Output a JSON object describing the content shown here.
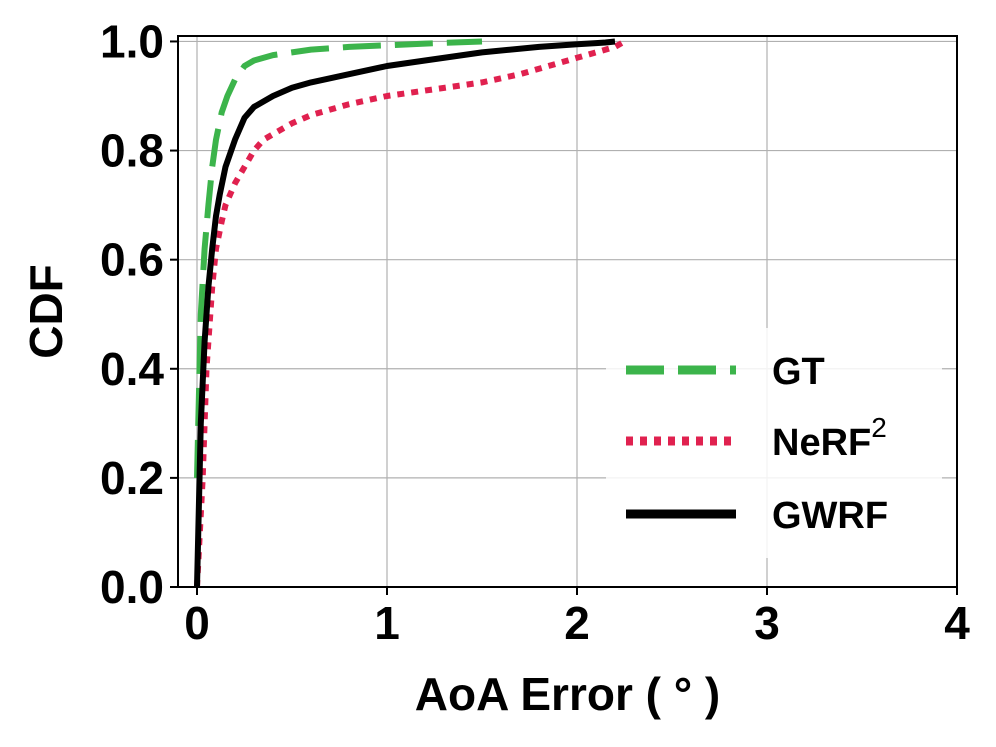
{
  "chart_data": {
    "type": "line",
    "title": "",
    "xlabel": "AoA Error ( ° )",
    "ylabel": "CDF",
    "xlim": [
      -0.1,
      4
    ],
    "ylim": [
      0,
      1.01
    ],
    "xticks": [
      0,
      1,
      2,
      3,
      4
    ],
    "xtick_labels": [
      "0",
      "1",
      "2",
      "3",
      "4"
    ],
    "yticks": [
      0.0,
      0.2,
      0.4,
      0.6,
      0.8,
      1.0
    ],
    "ytick_labels": [
      "0.0",
      "0.2",
      "0.4",
      "0.6",
      "0.8",
      "1.0"
    ],
    "grid": true,
    "legend_position": "lower-right",
    "series": [
      {
        "name": "GT",
        "legend_base": "GT",
        "legend_sup": "",
        "color": "#3cb44b",
        "style": "dashed",
        "x": [
          0,
          0.02,
          0.04,
          0.06,
          0.08,
          0.1,
          0.13,
          0.16,
          0.2,
          0.25,
          0.3,
          0.4,
          0.5,
          0.6,
          0.8,
          1.0,
          1.2,
          1.5
        ],
        "y": [
          0.2,
          0.5,
          0.62,
          0.7,
          0.77,
          0.82,
          0.87,
          0.9,
          0.93,
          0.955,
          0.965,
          0.975,
          0.98,
          0.985,
          0.99,
          0.993,
          0.996,
          1.0
        ]
      },
      {
        "name": "NeRF2",
        "legend_base": "NeRF",
        "legend_sup": "2",
        "color": "#e0214f",
        "style": "dotted",
        "x": [
          0,
          0.03,
          0.05,
          0.08,
          0.1,
          0.13,
          0.15,
          0.2,
          0.25,
          0.3,
          0.35,
          0.4,
          0.5,
          0.6,
          0.8,
          1.0,
          1.2,
          1.5,
          1.7,
          1.9,
          2.0,
          2.1,
          2.2,
          2.25
        ],
        "y": [
          0.0,
          0.2,
          0.4,
          0.55,
          0.62,
          0.67,
          0.7,
          0.74,
          0.77,
          0.8,
          0.82,
          0.83,
          0.85,
          0.865,
          0.885,
          0.9,
          0.91,
          0.925,
          0.94,
          0.96,
          0.97,
          0.98,
          0.99,
          1.0
        ]
      },
      {
        "name": "GWRF",
        "legend_base": "GWRF",
        "legend_sup": "",
        "color": "#000000",
        "style": "solid",
        "x": [
          0,
          0.02,
          0.04,
          0.06,
          0.08,
          0.1,
          0.12,
          0.15,
          0.2,
          0.25,
          0.3,
          0.4,
          0.5,
          0.6,
          0.8,
          1.0,
          1.2,
          1.5,
          1.8,
          2.0,
          2.1,
          2.15,
          2.2
        ],
        "y": [
          0.0,
          0.3,
          0.45,
          0.55,
          0.62,
          0.68,
          0.72,
          0.77,
          0.82,
          0.86,
          0.88,
          0.9,
          0.915,
          0.925,
          0.94,
          0.955,
          0.965,
          0.98,
          0.99,
          0.995,
          0.997,
          0.998,
          1.0
        ]
      }
    ]
  }
}
